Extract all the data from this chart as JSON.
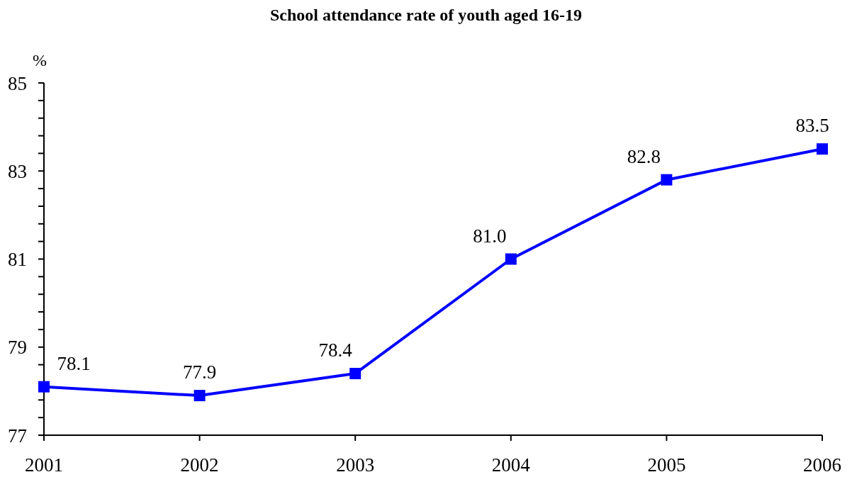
{
  "chart_data": {
    "type": "line",
    "title": "School attendance rate of youth aged 16-19",
    "ylabel": "%",
    "categories": [
      "2001",
      "2002",
      "2003",
      "2004",
      "2005",
      "2006"
    ],
    "values": [
      78.1,
      77.9,
      78.4,
      81.0,
      82.8,
      83.5
    ],
    "color": "#0000ff",
    "value_labels": [
      "78.1",
      "77.9",
      "78.4",
      "81.0",
      "82.8",
      "83.5"
    ],
    "ylim": [
      77,
      85
    ],
    "yticks": [
      77,
      {
        "value": 77.4,
        "label": null
      },
      {
        "value": 77.8,
        "label": null
      },
      {
        "value": 78.2,
        "label": null
      },
      {
        "value": 78.6,
        "label": null
      },
      79,
      {
        "value": 79.4,
        "label": null
      },
      {
        "value": 79.8,
        "label": null
      },
      {
        "value": 80.2,
        "label": null
      },
      {
        "value": 80.6,
        "label": null
      },
      81,
      {
        "value": 81.4,
        "label": null
      },
      {
        "value": 81.8,
        "label": null
      },
      {
        "value": 82.2,
        "label": null
      },
      {
        "value": 82.6,
        "label": null
      },
      83,
      {
        "value": 83.4,
        "label": null
      },
      {
        "value": 83.8,
        "label": null
      },
      {
        "value": 84.2,
        "label": null
      },
      {
        "value": 84.6,
        "label": null
      },
      85
    ],
    "marker": "square",
    "line_style": "solid"
  }
}
